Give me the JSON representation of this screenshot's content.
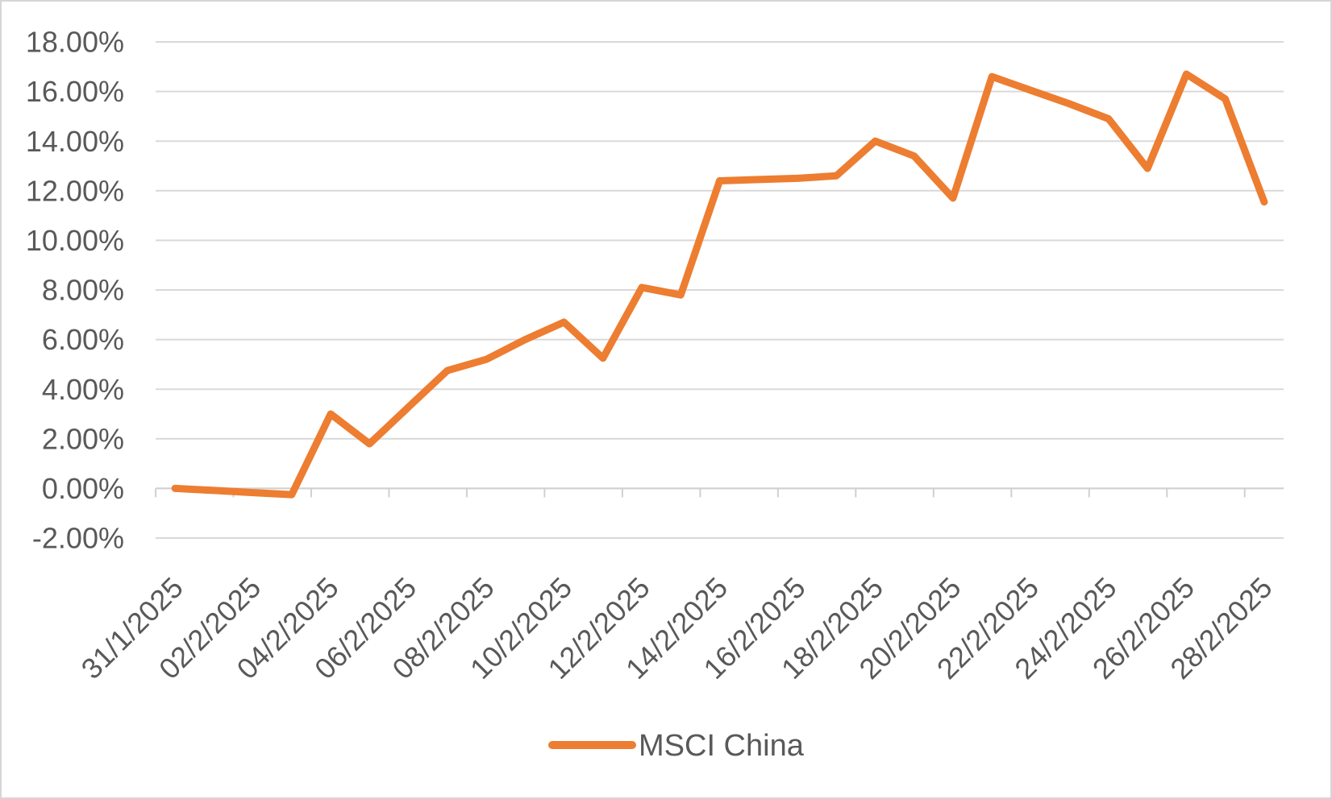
{
  "chart_data": {
    "type": "line",
    "title": "",
    "xlabel": "",
    "ylabel": "",
    "x": [
      "31/1/2025",
      "1/2/2025",
      "2/2/2025",
      "3/2/2025",
      "4/2/2025",
      "5/2/2025",
      "6/2/2025",
      "7/2/2025",
      "8/2/2025",
      "9/2/2025",
      "10/2/2025",
      "11/2/2025",
      "12/2/2025",
      "13/2/2025",
      "14/2/2025",
      "15/2/2025",
      "16/2/2025",
      "17/2/2025",
      "18/2/2025",
      "19/2/2025",
      "20/2/2025",
      "21/2/2025",
      "22/2/2025",
      "23/2/2025",
      "24/2/2025",
      "25/2/2025",
      "26/2/2025",
      "27/2/2025",
      "28/2/2025"
    ],
    "series": [
      {
        "name": "MSCI China",
        "color": "#ED7D31",
        "values": [
          0.0,
          -0.08,
          -0.17,
          -0.25,
          3.0,
          1.8,
          3.28,
          4.75,
          5.2,
          6.0,
          6.7,
          5.25,
          8.1,
          7.8,
          12.4,
          12.45,
          12.5,
          12.6,
          14.0,
          13.4,
          11.7,
          16.6,
          16.05,
          15.5,
          14.9,
          12.9,
          16.7,
          15.7,
          11.55
        ]
      }
    ],
    "ylim": [
      -2,
      18
    ],
    "y_tick_step": 2,
    "y_tick_labels": [
      "18.00%",
      "16.00%",
      "14.00%",
      "12.00%",
      "10.00%",
      "8.00%",
      "6.00%",
      "4.00%",
      "2.00%",
      "0.00%",
      "-2.00%"
    ],
    "x_tick_labels": [
      "31/1/2025",
      "02/2/2025",
      "04/2/2025",
      "06/2/2025",
      "08/2/2025",
      "10/2/2025",
      "12/2/2025",
      "14/2/2025",
      "16/2/2025",
      "18/2/2025",
      "20/2/2025",
      "22/2/2025",
      "24/2/2025",
      "26/2/2025",
      "28/2/2025"
    ],
    "x_tick_interval": 2,
    "grid": true,
    "legend_position": "bottom-center",
    "colors": {
      "series_orange": "#ED7D31",
      "axis_text": "#595959",
      "gridline": "#D9D9D9",
      "axis_line": "#D0D0D0",
      "background": "#FFFFFF"
    }
  },
  "legend": {
    "label": "MSCI China"
  }
}
